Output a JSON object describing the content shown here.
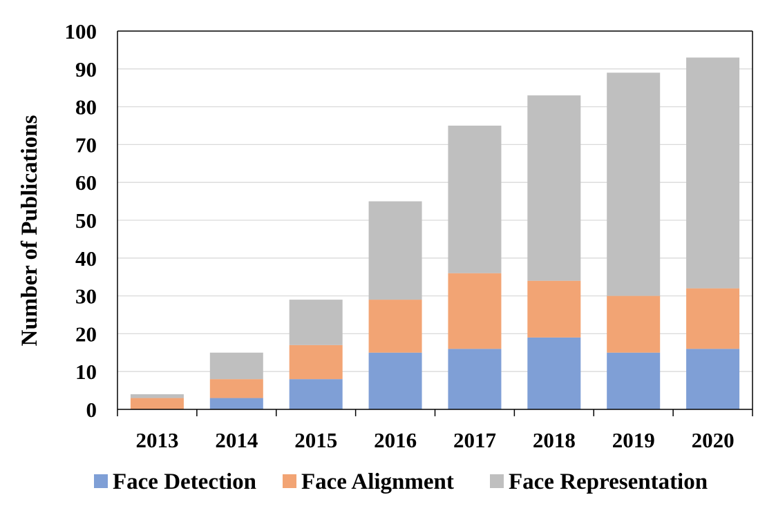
{
  "chart_data": {
    "type": "bar",
    "stacked": true,
    "categories": [
      "2013",
      "2014",
      "2015",
      "2016",
      "2017",
      "2018",
      "2019",
      "2020"
    ],
    "series": [
      {
        "name": "Face Detection",
        "color": "#7f9fd6",
        "values": [
          0,
          3,
          8,
          15,
          16,
          19,
          15,
          16
        ]
      },
      {
        "name": "Face Alignment",
        "color": "#f2a474",
        "values": [
          3,
          5,
          9,
          14,
          20,
          15,
          15,
          16
        ]
      },
      {
        "name": "Face Representation",
        "color": "#bfbfbf",
        "values": [
          1,
          7,
          12,
          26,
          39,
          49,
          59,
          61
        ]
      }
    ],
    "title": "",
    "xlabel": "",
    "ylabel": "Number of Publications",
    "ylim": [
      0,
      100
    ],
    "yticks": [
      "0",
      "10",
      "20",
      "30",
      "40",
      "50",
      "60",
      "70",
      "80",
      "90",
      "100"
    ],
    "grid": true,
    "legend_position": "bottom"
  }
}
